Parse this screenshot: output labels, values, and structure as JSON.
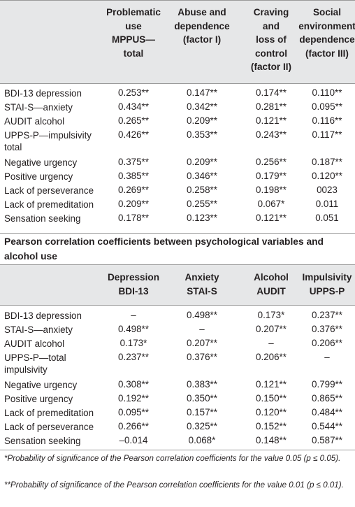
{
  "table1": {
    "headers": [
      "Problematic\nuse\nMPPUS—\ntotal",
      "Abuse and\ndependence\n(factor I)",
      "Craving\nand\nloss of\ncontrol\n(factor II)",
      "Social\nenvironment\ndependence\n(factor III)"
    ],
    "rows": [
      {
        "label": "BDI-13 depression",
        "values": [
          "0.253**",
          "0.147**",
          "0.174**",
          "0.110**"
        ]
      },
      {
        "label": "STAI-S—anxiety",
        "values": [
          "0.434**",
          "0.342**",
          "0.281**",
          "0.095**"
        ]
      },
      {
        "label": "AUDIT alcohol",
        "values": [
          "0.265**",
          "0.209**",
          "0.121**",
          "0.116**"
        ]
      },
      {
        "label": "UPPS-P—impulsivity\ntotal",
        "values": [
          "0.426**",
          "0.353**",
          "0.243**",
          "0.117**"
        ]
      },
      {
        "label": "Negative urgency",
        "values": [
          "0.375**",
          "0.209**",
          "0.256**",
          "0.187**"
        ]
      },
      {
        "label": "Positive urgency",
        "values": [
          "0.385**",
          "0.346**",
          "0.179**",
          "0.120**"
        ]
      },
      {
        "label": "Lack of perseverance",
        "values": [
          "0.269**",
          "0.258**",
          "0.198**",
          "0023"
        ]
      },
      {
        "label": "Lack of premeditation",
        "values": [
          "0.209**",
          "0.255**",
          "0.067*",
          "0.011"
        ]
      },
      {
        "label": "Sensation seeking",
        "values": [
          "0.178**",
          "0.123**",
          "0.121**",
          "0.051"
        ]
      }
    ]
  },
  "table2": {
    "title": "Pearson correlation coefficients between psychological variables and alcohol use",
    "headers": [
      "Depression\nBDI-13",
      "Anxiety\nSTAI-S",
      "Alcohol\nAUDIT",
      "Impulsivity\nUPPS-P"
    ],
    "rows": [
      {
        "label": "BDI-13 depression",
        "values": [
          "–",
          "0.498**",
          "0.173*",
          "0.237**"
        ]
      },
      {
        "label": "STAI-S—anxiety",
        "values": [
          "0.498**",
          "–",
          "0.207**",
          "0.376**"
        ]
      },
      {
        "label": "AUDIT alcohol",
        "values": [
          "0.173*",
          "0.207**",
          "–",
          "0.206**"
        ]
      },
      {
        "label": "UPPS-P—total\nimpulsivity",
        "values": [
          "0.237**",
          "0.376**",
          "0.206**",
          "–"
        ]
      },
      {
        "label": "Negative urgency",
        "values": [
          "0.308**",
          "0.383**",
          "0.121**",
          "0.799**"
        ]
      },
      {
        "label": "Positive urgency",
        "values": [
          "0.192**",
          "0.350**",
          "0.150**",
          "0.865**"
        ]
      },
      {
        "label": "Lack of premeditation",
        "values": [
          "0.095**",
          "0.157**",
          "0.120**",
          "0.484**"
        ]
      },
      {
        "label": "Lack of perseverance",
        "values": [
          "0.266**",
          "0.325**",
          "0.152**",
          "0.544**"
        ]
      },
      {
        "label": "Sensation seeking",
        "values": [
          "–0.014",
          "0.068*",
          "0.148**",
          "0.587**"
        ]
      }
    ]
  },
  "footnotes": [
    "*Probability of significance of the Pearson correlation coefficients for the value 0.05 (p ≤ 0.05).",
    "**Probability of significance of the Pearson correlation coefficients for the value 0.01 (p ≤ 0.01)."
  ]
}
